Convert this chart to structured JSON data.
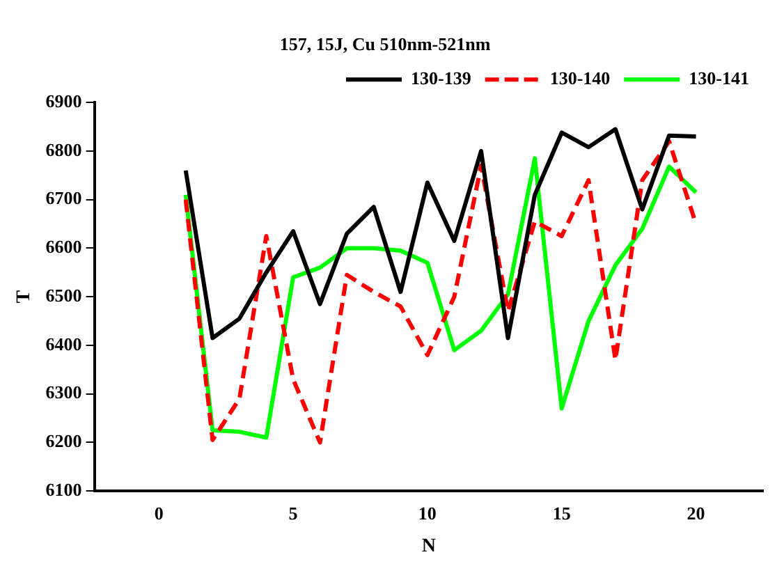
{
  "chart_data": {
    "type": "line",
    "title": "157, 15J, Cu 510nm-521nm",
    "xlabel": "N",
    "ylabel": "T",
    "x": [
      1,
      2,
      3,
      4,
      5,
      6,
      7,
      8,
      9,
      10,
      11,
      12,
      13,
      14,
      15,
      16,
      17,
      18,
      19,
      20
    ],
    "series": [
      {
        "name": "130-139",
        "color": "#000000",
        "line_style": "solid",
        "values": [
          6760,
          6415,
          6455,
          6550,
          6635,
          6485,
          6630,
          6685,
          6510,
          6735,
          6615,
          6800,
          6415,
          6710,
          6838,
          6808,
          6845,
          6680,
          6832,
          6830
        ]
      },
      {
        "name": "130-140",
        "color": "#ff0000",
        "line_style": "dashed",
        "values": [
          6700,
          6205,
          6290,
          6625,
          6330,
          6200,
          6545,
          6510,
          6480,
          6380,
          6500,
          6770,
          6470,
          6655,
          6625,
          6740,
          6370,
          6740,
          6820,
          6650
        ]
      },
      {
        "name": "130-141",
        "color": "#00ff00",
        "line_style": "solid",
        "values": [
          6710,
          6225,
          6222,
          6210,
          6540,
          6560,
          6600,
          6600,
          6595,
          6570,
          6390,
          6430,
          6505,
          6785,
          6270,
          6450,
          6565,
          6640,
          6768,
          6715
        ]
      }
    ],
    "xlim": [
      -2.4,
      22.5
    ],
    "xticks": [
      0,
      5,
      10,
      15,
      20
    ],
    "ylim": [
      6100,
      6900
    ],
    "yticks": [
      6100,
      6200,
      6300,
      6400,
      6500,
      6600,
      6700,
      6800,
      6900
    ],
    "grid": false,
    "legend": "top right",
    "marker": "none"
  }
}
